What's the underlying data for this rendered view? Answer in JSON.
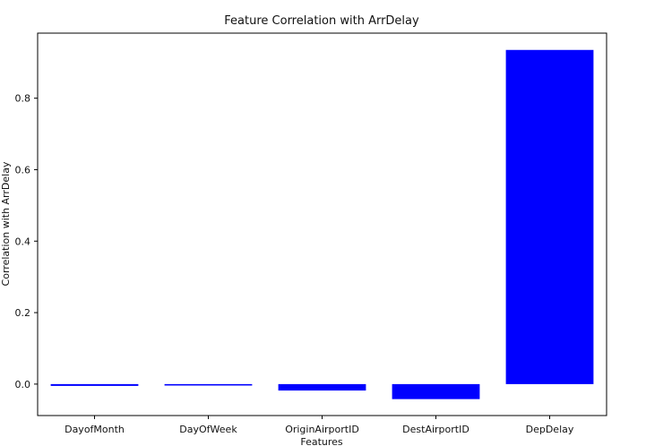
{
  "chart_data": {
    "type": "bar",
    "title": "Feature Correlation with ArrDelay",
    "xlabel": "Features",
    "ylabel": "Correlation with ArrDelay",
    "categories": [
      "DayofMonth",
      "DayOfWeek",
      "OriginAirportID",
      "DestAirportID",
      "DepDelay"
    ],
    "values": [
      -0.005,
      -0.004,
      -0.018,
      -0.042,
      0.935
    ],
    "ylim": [
      -0.088,
      0.982
    ],
    "yticks": [
      0.0,
      0.2,
      0.4,
      0.6,
      0.8
    ],
    "ytick_labels": [
      "0.0",
      "0.2",
      "0.4",
      "0.6",
      "0.8"
    ],
    "bar_color": "#0000ff",
    "grid": false,
    "legend": false
  }
}
